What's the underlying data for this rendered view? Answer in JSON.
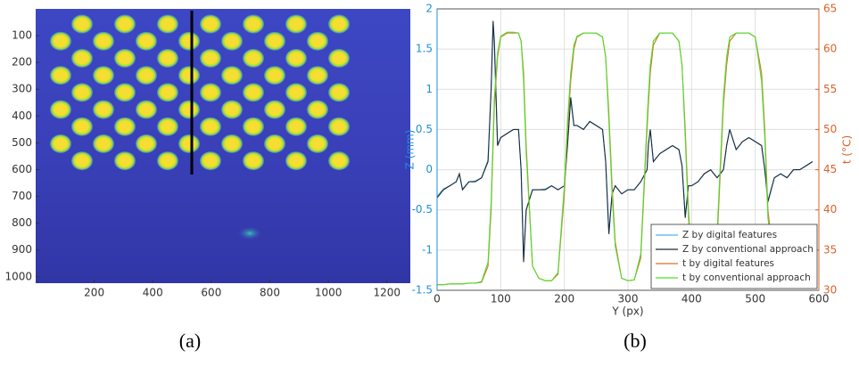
{
  "chart_data": [
    {
      "type": "image",
      "caption": "(a)",
      "xlim": [
        0,
        1280
      ],
      "xticks": [
        200,
        400,
        600,
        800,
        1000,
        1200
      ],
      "ylim": [
        1024,
        0
      ],
      "yticks": [
        100,
        200,
        300,
        400,
        500,
        600,
        700,
        800,
        900,
        1000
      ]
    },
    {
      "type": "line",
      "caption": "(b)",
      "xlabel": "Y (px)",
      "ylabel": "Z (mm)",
      "y2label": "t (°C)",
      "ylabel_color": "#1f8fd6",
      "y2label_color": "#d9622a",
      "grid": true,
      "legend": "lower right",
      "xlim": [
        0,
        600
      ],
      "xticks": [
        0,
        100,
        200,
        300,
        400,
        500,
        600
      ],
      "ylim": [
        -1.5,
        2
      ],
      "yticks": [
        -1.5,
        -1,
        -0.5,
        0,
        0.5,
        1,
        1.5,
        2
      ],
      "y2lim": [
        30,
        65
      ],
      "y2ticks": [
        30,
        35,
        40,
        45,
        50,
        55,
        60,
        65
      ],
      "x": [
        0,
        10,
        20,
        30,
        35,
        40,
        50,
        60,
        70,
        80,
        85,
        88,
        90,
        95,
        100,
        110,
        120,
        128,
        132,
        136,
        140,
        150,
        160,
        170,
        180,
        190,
        200,
        205,
        210,
        215,
        220,
        230,
        240,
        250,
        260,
        265,
        270,
        275,
        280,
        290,
        300,
        310,
        320,
        330,
        332,
        335,
        340,
        350,
        360,
        370,
        380,
        385,
        390,
        395,
        400,
        410,
        420,
        430,
        440,
        450,
        455,
        460,
        470,
        480,
        490,
        500,
        510,
        515,
        520,
        530,
        540,
        550,
        560,
        570,
        580,
        590
      ],
      "series": [
        {
          "name": "Z  by digital features",
          "color": "#4db8e8",
          "values": [
            -0.33,
            -0.24,
            -0.2,
            -0.15,
            -0.06,
            -0.24,
            -0.15,
            -0.14,
            -0.1,
            0.12,
            1.0,
            1.8,
            1.55,
            0.3,
            0.4,
            0.45,
            0.5,
            0.5,
            0.0,
            -1.1,
            -0.5,
            -0.25,
            -0.25,
            -0.24,
            -0.2,
            -0.25,
            -0.2,
            0.3,
            0.88,
            0.55,
            0.55,
            0.5,
            0.6,
            0.55,
            0.5,
            0.1,
            -0.78,
            -0.3,
            -0.2,
            -0.3,
            -0.25,
            -0.25,
            -0.15,
            0.0,
            0.3,
            0.5,
            0.1,
            0.2,
            0.25,
            0.3,
            0.25,
            0.05,
            -0.58,
            -0.2,
            -0.2,
            -0.15,
            -0.05,
            0.0,
            -0.1,
            0.0,
            0.3,
            0.5,
            0.25,
            0.35,
            0.4,
            0.35,
            0.3,
            0.0,
            -0.38,
            -0.1,
            -0.05,
            -0.1,
            0.0,
            0.0,
            0.05,
            0.1
          ]
        },
        {
          "name": "Z  by conventional approach",
          "color": "#1a2a3a",
          "values": [
            -0.35,
            -0.25,
            -0.2,
            -0.15,
            -0.05,
            -0.25,
            -0.15,
            -0.15,
            -0.1,
            0.1,
            1.0,
            1.85,
            1.6,
            0.3,
            0.4,
            0.45,
            0.5,
            0.5,
            0.0,
            -1.15,
            -0.5,
            -0.25,
            -0.25,
            -0.25,
            -0.2,
            -0.25,
            -0.2,
            0.3,
            0.9,
            0.55,
            0.55,
            0.5,
            0.6,
            0.55,
            0.5,
            0.1,
            -0.8,
            -0.3,
            -0.2,
            -0.3,
            -0.25,
            -0.25,
            -0.15,
            0.0,
            0.3,
            0.5,
            0.1,
            0.2,
            0.25,
            0.3,
            0.25,
            0.05,
            -0.6,
            -0.2,
            -0.2,
            -0.15,
            -0.05,
            0.0,
            -0.1,
            0.0,
            0.3,
            0.5,
            0.25,
            0.35,
            0.4,
            0.35,
            0.3,
            0.0,
            -0.4,
            -0.1,
            -0.05,
            -0.1,
            0.0,
            0.0,
            0.05,
            0.1
          ]
        },
        {
          "name": "t by digital features",
          "color": "#d9722a",
          "axis": "y2",
          "values": [
            30.7,
            30.7,
            30.8,
            30.8,
            30.8,
            30.8,
            30.9,
            30.9,
            31,
            33,
            40,
            48,
            53,
            59,
            61.5,
            62,
            62,
            62,
            61,
            57,
            48,
            33,
            31.5,
            31.2,
            31.2,
            32,
            42,
            50,
            56,
            60,
            61.5,
            62,
            62,
            62,
            61.5,
            59,
            52,
            43,
            36,
            31.5,
            31.2,
            31.3,
            34,
            50,
            53,
            57,
            60.5,
            62,
            62,
            62,
            61,
            58,
            50,
            40,
            34,
            31.3,
            31.2,
            31.5,
            36,
            53,
            58,
            61,
            62,
            62,
            62,
            61.5,
            57,
            50,
            40,
            33,
            31,
            31,
            30.8,
            30.6,
            30.5,
            30.4
          ]
        },
        {
          "name": "t by conventional approach",
          "color": "#4dde2a",
          "axis": "y2",
          "values": [
            30.7,
            30.7,
            30.8,
            30.8,
            30.8,
            30.8,
            30.9,
            30.9,
            31.1,
            33.5,
            41,
            49,
            54,
            59.5,
            61.6,
            62.1,
            62.1,
            62,
            61,
            56,
            47,
            33,
            31.5,
            31.2,
            31.2,
            32.2,
            43,
            51,
            57,
            60.5,
            61.6,
            62,
            62,
            62,
            61.5,
            59,
            51,
            42,
            35.5,
            31.5,
            31.2,
            31.3,
            34.5,
            51,
            54,
            58,
            61,
            62,
            62,
            62,
            61,
            58,
            49,
            39,
            33.5,
            31.3,
            31.2,
            31.5,
            37,
            54,
            59,
            61.5,
            62,
            62,
            62,
            61.5,
            56,
            49,
            39,
            32.5,
            31,
            31,
            30.8,
            30.6,
            30.5,
            30.4
          ]
        }
      ]
    }
  ]
}
